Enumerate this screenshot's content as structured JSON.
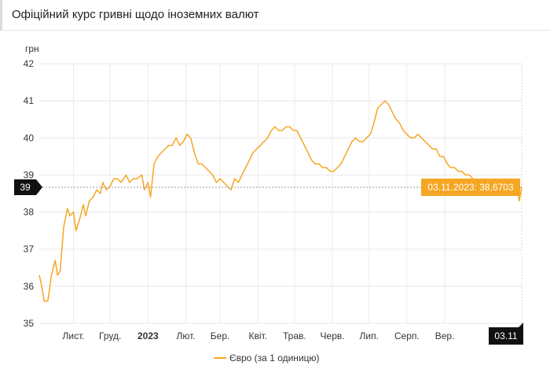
{
  "title": "Офіційний курс гривні щодо іноземних валют",
  "chart_data": {
    "type": "line",
    "ylabel": "грн",
    "ylim": [
      35,
      42
    ],
    "y_ticks": [
      "35",
      "36",
      "37",
      "38",
      "39",
      "40",
      "41",
      "42"
    ],
    "x_ticks": [
      {
        "label": "Лист.",
        "date": "2022-11-01",
        "bold": false
      },
      {
        "label": "Груд.",
        "date": "2022-12-01",
        "bold": false
      },
      {
        "label": "2023",
        "date": "2023-01-01",
        "bold": true
      },
      {
        "label": "Лют.",
        "date": "2023-02-01",
        "bold": false
      },
      {
        "label": "Бер.",
        "date": "2023-03-01",
        "bold": false
      },
      {
        "label": "Квіт.",
        "date": "2023-04-01",
        "bold": false
      },
      {
        "label": "Трав.",
        "date": "2023-05-01",
        "bold": false
      },
      {
        "label": "Черв.",
        "date": "2023-06-01",
        "bold": false
      },
      {
        "label": "Лип.",
        "date": "2023-07-01",
        "bold": false
      },
      {
        "label": "Серп.",
        "date": "2023-08-01",
        "bold": false
      },
      {
        "label": "Вер.",
        "date": "2023-09-01",
        "bold": false
      }
    ],
    "xlim": [
      "2022-10-04",
      "2023-11-03"
    ],
    "grid": true,
    "legend_position": "bottom-center",
    "series": [
      {
        "name": "Євро (за 1 одиницю)",
        "color": "#f5a623",
        "points": [
          [
            "2022-10-04",
            36.3
          ],
          [
            "2022-10-06",
            36.0
          ],
          [
            "2022-10-08",
            35.6
          ],
          [
            "2022-10-11",
            35.6
          ],
          [
            "2022-10-14",
            36.3
          ],
          [
            "2022-10-17",
            36.7
          ],
          [
            "2022-10-19",
            36.3
          ],
          [
            "2022-10-21",
            36.4
          ],
          [
            "2022-10-24",
            37.6
          ],
          [
            "2022-10-27",
            38.1
          ],
          [
            "2022-10-29",
            37.9
          ],
          [
            "2022-11-01",
            38.0
          ],
          [
            "2022-11-03",
            37.5
          ],
          [
            "2022-11-06",
            37.8
          ],
          [
            "2022-11-09",
            38.2
          ],
          [
            "2022-11-11",
            37.9
          ],
          [
            "2022-11-14",
            38.3
          ],
          [
            "2022-11-17",
            38.4
          ],
          [
            "2022-11-20",
            38.6
          ],
          [
            "2022-11-23",
            38.5
          ],
          [
            "2022-11-25",
            38.8
          ],
          [
            "2022-11-28",
            38.6
          ],
          [
            "2022-12-01",
            38.7
          ],
          [
            "2022-12-04",
            38.9
          ],
          [
            "2022-12-07",
            38.9
          ],
          [
            "2022-12-10",
            38.8
          ],
          [
            "2022-12-14",
            39.0
          ],
          [
            "2022-12-17",
            38.8
          ],
          [
            "2022-12-20",
            38.9
          ],
          [
            "2022-12-23",
            38.9
          ],
          [
            "2022-12-27",
            39.0
          ],
          [
            "2022-12-29",
            38.6
          ],
          [
            "2023-01-01",
            38.8
          ],
          [
            "2023-01-03",
            38.4
          ],
          [
            "2023-01-06",
            39.3
          ],
          [
            "2023-01-09",
            39.5
          ],
          [
            "2023-01-12",
            39.6
          ],
          [
            "2023-01-15",
            39.7
          ],
          [
            "2023-01-18",
            39.8
          ],
          [
            "2023-01-21",
            39.8
          ],
          [
            "2023-01-24",
            40.0
          ],
          [
            "2023-01-27",
            39.8
          ],
          [
            "2023-01-30",
            39.9
          ],
          [
            "2023-02-02",
            40.1
          ],
          [
            "2023-02-05",
            40.0
          ],
          [
            "2023-02-08",
            39.6
          ],
          [
            "2023-02-11",
            39.3
          ],
          [
            "2023-02-14",
            39.3
          ],
          [
            "2023-02-17",
            39.2
          ],
          [
            "2023-02-20",
            39.1
          ],
          [
            "2023-02-23",
            39.0
          ],
          [
            "2023-02-26",
            38.8
          ],
          [
            "2023-03-01",
            38.9
          ],
          [
            "2023-03-04",
            38.8
          ],
          [
            "2023-03-07",
            38.7
          ],
          [
            "2023-03-10",
            38.6
          ],
          [
            "2023-03-13",
            38.9
          ],
          [
            "2023-03-16",
            38.8
          ],
          [
            "2023-03-19",
            39.0
          ],
          [
            "2023-03-22",
            39.2
          ],
          [
            "2023-03-25",
            39.4
          ],
          [
            "2023-03-28",
            39.6
          ],
          [
            "2023-03-31",
            39.7
          ],
          [
            "2023-04-03",
            39.8
          ],
          [
            "2023-04-06",
            39.9
          ],
          [
            "2023-04-09",
            40.0
          ],
          [
            "2023-04-12",
            40.2
          ],
          [
            "2023-04-15",
            40.3
          ],
          [
            "2023-04-18",
            40.2
          ],
          [
            "2023-04-21",
            40.2
          ],
          [
            "2023-04-24",
            40.3
          ],
          [
            "2023-04-27",
            40.3
          ],
          [
            "2023-04-30",
            40.2
          ],
          [
            "2023-05-03",
            40.2
          ],
          [
            "2023-05-06",
            40.0
          ],
          [
            "2023-05-09",
            39.8
          ],
          [
            "2023-05-12",
            39.6
          ],
          [
            "2023-05-15",
            39.4
          ],
          [
            "2023-05-18",
            39.3
          ],
          [
            "2023-05-21",
            39.3
          ],
          [
            "2023-05-24",
            39.2
          ],
          [
            "2023-05-27",
            39.2
          ],
          [
            "2023-05-30",
            39.1
          ],
          [
            "2023-06-02",
            39.1
          ],
          [
            "2023-06-05",
            39.2
          ],
          [
            "2023-06-08",
            39.3
          ],
          [
            "2023-06-11",
            39.5
          ],
          [
            "2023-06-14",
            39.7
          ],
          [
            "2023-06-17",
            39.9
          ],
          [
            "2023-06-20",
            40.0
          ],
          [
            "2023-06-23",
            39.9
          ],
          [
            "2023-06-26",
            39.9
          ],
          [
            "2023-06-29",
            40.0
          ],
          [
            "2023-07-02",
            40.1
          ],
          [
            "2023-07-05",
            40.4
          ],
          [
            "2023-07-08",
            40.8
          ],
          [
            "2023-07-11",
            40.9
          ],
          [
            "2023-07-14",
            41.0
          ],
          [
            "2023-07-17",
            40.9
          ],
          [
            "2023-07-20",
            40.7
          ],
          [
            "2023-07-23",
            40.5
          ],
          [
            "2023-07-26",
            40.4
          ],
          [
            "2023-07-29",
            40.2
          ],
          [
            "2023-08-01",
            40.1
          ],
          [
            "2023-08-04",
            40.0
          ],
          [
            "2023-08-07",
            40.0
          ],
          [
            "2023-08-10",
            40.1
          ],
          [
            "2023-08-13",
            40.0
          ],
          [
            "2023-08-16",
            39.9
          ],
          [
            "2023-08-19",
            39.8
          ],
          [
            "2023-08-22",
            39.7
          ],
          [
            "2023-08-25",
            39.7
          ],
          [
            "2023-08-28",
            39.5
          ],
          [
            "2023-08-31",
            39.5
          ],
          [
            "2023-09-03",
            39.3
          ],
          [
            "2023-09-06",
            39.2
          ],
          [
            "2023-09-09",
            39.2
          ],
          [
            "2023-09-12",
            39.1
          ],
          [
            "2023-09-15",
            39.1
          ],
          [
            "2023-09-18",
            39.0
          ],
          [
            "2023-09-21",
            39.0
          ],
          [
            "2023-09-24",
            38.9
          ],
          [
            "2023-09-27",
            38.8
          ],
          [
            "2023-09-30",
            38.7
          ],
          [
            "2023-10-03",
            38.5
          ],
          [
            "2023-10-06",
            38.6
          ],
          [
            "2023-10-09",
            38.7
          ],
          [
            "2023-10-12",
            38.6
          ],
          [
            "2023-10-15",
            38.7
          ],
          [
            "2023-10-18",
            38.7
          ],
          [
            "2023-10-21",
            38.6
          ],
          [
            "2023-10-24",
            38.5
          ],
          [
            "2023-10-27",
            38.6
          ],
          [
            "2023-10-30",
            38.7
          ],
          [
            "2023-11-01",
            38.3
          ],
          [
            "2023-11-03",
            38.6703
          ]
        ]
      }
    ],
    "crosshair_y_label": "39",
    "crosshair_x_label": "03.11",
    "tooltip": "03.11.2023: 38,6703"
  }
}
